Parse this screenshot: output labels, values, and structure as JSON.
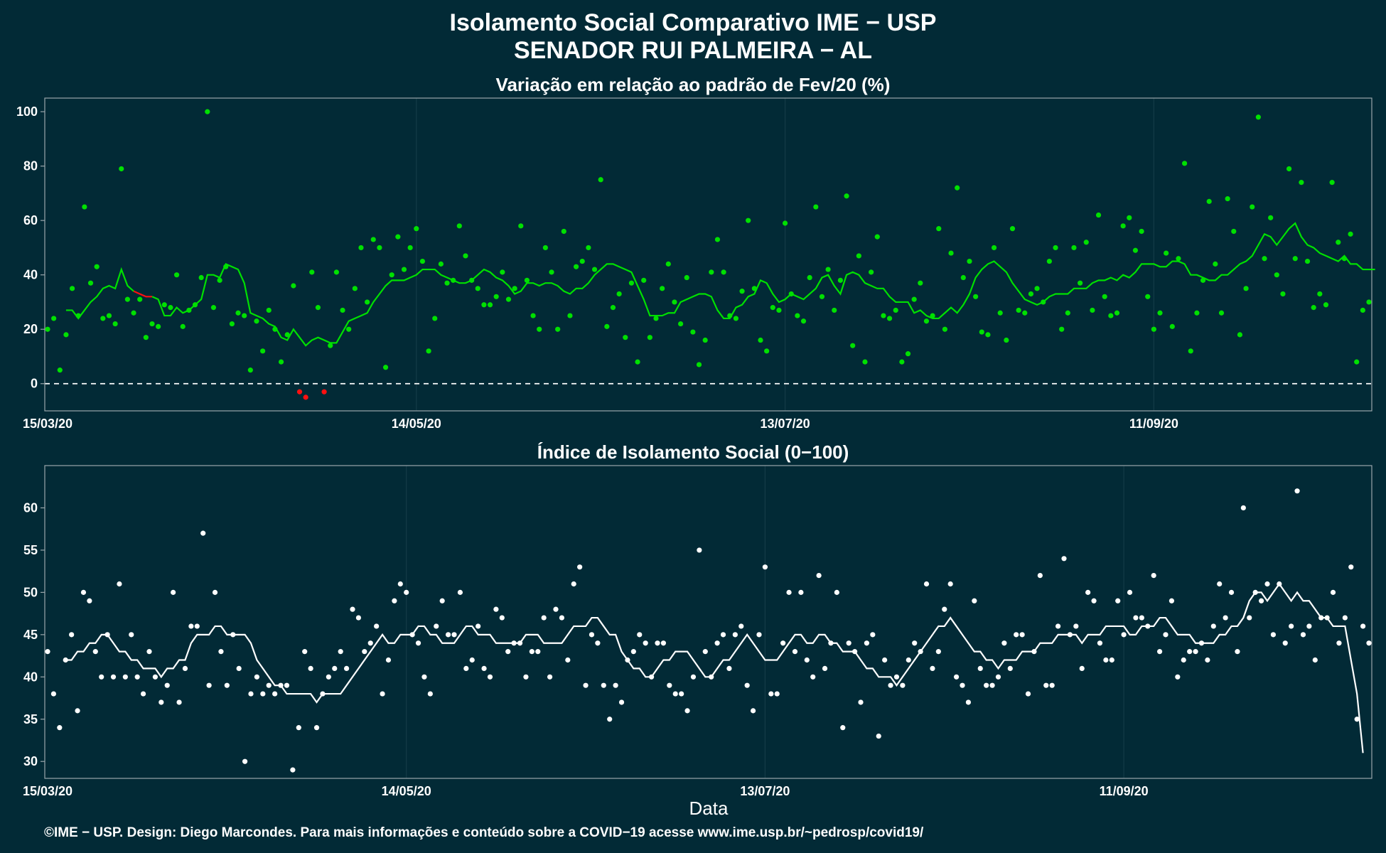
{
  "title_line1": "Isolamento Social Comparativo IME − USP",
  "title_line2": "SENADOR RUI PALMEIRA − AL",
  "xlabel": "Data",
  "footer": "©IME − USP. Design: Diego Marcondes. Para mais informações e conteúdo sobre a COVID−19 acesse www.ime.usp.br/~pedrosp/covid19/",
  "colors": {
    "background": "#022a36",
    "panel_border": "#9aa6ab",
    "grid": "#143b47",
    "positive": "#00e000",
    "negative": "#ff1010",
    "index": "#ffffff",
    "zero_line": "#ffffff"
  },
  "chart_data": [
    {
      "type": "scatter",
      "title": "Variação em relação ao padrão de Fev/20 (%)",
      "x_start": "15/03/20",
      "x_ticks": [
        "15/03/20",
        "14/05/20",
        "13/07/20",
        "11/09/20"
      ],
      "ylim": [
        -10,
        105
      ],
      "y_ticks": [
        0,
        20,
        40,
        60,
        80,
        100
      ],
      "zero_line": true,
      "grid": true,
      "points": [
        20,
        24,
        5,
        18,
        35,
        25,
        65,
        37,
        43,
        24,
        25,
        22,
        79,
        31,
        26,
        31,
        17,
        22,
        21,
        29,
        28,
        40,
        21,
        27,
        29,
        39,
        100,
        28,
        38,
        43,
        22,
        26,
        25,
        5,
        23,
        12,
        27,
        20,
        8,
        18,
        36,
        -3,
        -5,
        41,
        28,
        -3,
        14,
        41,
        27,
        20,
        35,
        50,
        30,
        53,
        50,
        6,
        40,
        54,
        42,
        50,
        57,
        45,
        12,
        24,
        44,
        37,
        38,
        58,
        47,
        38,
        35,
        29,
        29,
        32,
        41,
        31,
        35,
        58,
        38,
        25,
        20,
        50,
        41,
        20,
        56,
        25,
        43,
        45,
        50,
        42,
        75,
        21,
        28,
        33,
        17,
        37,
        8,
        38,
        17,
        24,
        35,
        44,
        30,
        22,
        39,
        19,
        7,
        16,
        41,
        53,
        41,
        25,
        24,
        34,
        60,
        35,
        16,
        12,
        28,
        27,
        59,
        33,
        25,
        23,
        39,
        65,
        32,
        42,
        27,
        38,
        69,
        14,
        47,
        8,
        41,
        54,
        25,
        24,
        27,
        8,
        11,
        31,
        37,
        23,
        25,
        57,
        20,
        48,
        72,
        39,
        45,
        32,
        19,
        18,
        50,
        26,
        16,
        57,
        27,
        26,
        33,
        35,
        30,
        45,
        50,
        20,
        26,
        50,
        37,
        52,
        27,
        62,
        32,
        25,
        26,
        58,
        61,
        49,
        56,
        32,
        20,
        26,
        48,
        21,
        46,
        81,
        12,
        26,
        38,
        67,
        44,
        26,
        68,
        56,
        18,
        35,
        65,
        98,
        46,
        61,
        40,
        33,
        79,
        46,
        74,
        45,
        28,
        33,
        29,
        74,
        52,
        46,
        55,
        8,
        27,
        30
      ],
      "moving_avg_7d": [
        27,
        27,
        24,
        27,
        30,
        32,
        35,
        36,
        35,
        42,
        36,
        34,
        33,
        32,
        32,
        31,
        25,
        25,
        28,
        26,
        27,
        29,
        31,
        40,
        40,
        39,
        44,
        43,
        42,
        37,
        26,
        25,
        24,
        22,
        21,
        17,
        16,
        20,
        17,
        14,
        16,
        17,
        16,
        15,
        15,
        19,
        23,
        24,
        25,
        26,
        30,
        33,
        36,
        38,
        38,
        38,
        39,
        40,
        42,
        42,
        42,
        40,
        39,
        38,
        37,
        37,
        38,
        40,
        42,
        41,
        39,
        38,
        36,
        33,
        34,
        37,
        37,
        36,
        37,
        37,
        36,
        34,
        33,
        35,
        35,
        37,
        40,
        42,
        44,
        44,
        43,
        42,
        41,
        36,
        31,
        25,
        25,
        25,
        26,
        26,
        30,
        31,
        32,
        33,
        33,
        32,
        27,
        24,
        24,
        28,
        29,
        32,
        33,
        38,
        37,
        33,
        30,
        31,
        33,
        32,
        31,
        33,
        35,
        39,
        40,
        36,
        33,
        40,
        41,
        40,
        37,
        36,
        35,
        35,
        32,
        30,
        30,
        30,
        26,
        27,
        25,
        24,
        24,
        26,
        28,
        26,
        29,
        33,
        39,
        42,
        44,
        45,
        43,
        41,
        37,
        34,
        31,
        30,
        29,
        30,
        32,
        33,
        33,
        33,
        35,
        35,
        35,
        37,
        38,
        38,
        39,
        38,
        40,
        39,
        41,
        44,
        44,
        44,
        43,
        43,
        45,
        45,
        44,
        40,
        40,
        39,
        38,
        38,
        40,
        40,
        42,
        44,
        45,
        47,
        51,
        55,
        54,
        51,
        54,
        57,
        59,
        54,
        51,
        50,
        48,
        47,
        46,
        45,
        47,
        44,
        44,
        42,
        42,
        42
      ],
      "avg_negative_range": [
        11,
        14
      ]
    },
    {
      "type": "scatter",
      "title": "Índice de Isolamento Social (0−100)",
      "x_start": "15/03/20",
      "x_ticks": [
        "15/03/20",
        "14/05/20",
        "13/07/20",
        "11/09/20"
      ],
      "ylim": [
        28,
        65
      ],
      "y_ticks": [
        30,
        35,
        40,
        45,
        50,
        55,
        60
      ],
      "grid": true,
      "points": [
        43,
        38,
        34,
        42,
        45,
        36,
        50,
        49,
        43,
        40,
        45,
        40,
        51,
        40,
        45,
        40,
        38,
        43,
        40,
        37,
        39,
        50,
        37,
        41,
        46,
        46,
        57,
        39,
        50,
        43,
        39,
        45,
        41,
        30,
        38,
        40,
        38,
        39,
        38,
        39,
        39,
        29,
        34,
        43,
        41,
        34,
        38,
        40,
        41,
        43,
        41,
        48,
        47,
        43,
        44,
        46,
        38,
        42,
        49,
        51,
        50,
        45,
        44,
        40,
        38,
        46,
        49,
        45,
        45,
        50,
        41,
        42,
        46,
        41,
        40,
        48,
        47,
        43,
        44,
        44,
        40,
        43,
        43,
        47,
        40,
        48,
        47,
        42,
        51,
        53,
        39,
        45,
        44,
        39,
        35,
        39,
        37,
        42,
        43,
        45,
        44,
        40,
        44,
        44,
        39,
        38,
        38,
        36,
        40,
        55,
        43,
        40,
        44,
        45,
        41,
        45,
        46,
        39,
        36,
        45,
        53,
        38,
        38,
        44,
        50,
        43,
        50,
        42,
        40,
        52,
        41,
        44,
        50,
        34,
        44,
        43,
        37,
        44,
        45,
        33,
        42,
        39,
        40,
        39,
        42,
        44,
        43,
        51,
        41,
        43,
        48,
        51,
        40,
        39,
        37,
        49,
        41,
        39,
        39,
        40,
        44,
        41,
        45,
        45,
        38,
        43,
        52,
        39,
        39,
        46,
        54,
        45,
        46,
        41,
        50,
        49,
        44,
        42,
        42,
        49,
        45,
        50,
        47,
        47,
        46,
        52,
        43,
        45,
        49,
        40,
        42,
        43,
        43,
        44,
        42,
        46,
        51,
        47,
        50,
        43,
        60,
        47,
        50,
        49,
        51,
        45,
        51,
        44,
        46,
        62,
        45,
        46,
        42,
        47,
        47,
        50,
        44,
        47,
        53,
        35,
        46,
        44
      ],
      "moving_avg_7d": [
        42,
        42,
        43,
        43,
        44,
        44,
        45,
        45,
        44,
        43,
        43,
        42,
        42,
        41,
        41,
        41,
        40,
        41,
        41,
        42,
        42,
        44,
        45,
        45,
        45,
        46,
        46,
        45,
        45,
        45,
        45,
        44,
        42,
        41,
        40,
        39,
        39,
        38,
        38,
        38,
        38,
        38,
        37,
        38,
        38,
        38,
        38,
        39,
        40,
        41,
        42,
        43,
        44,
        45,
        44,
        44,
        45,
        45,
        45,
        46,
        46,
        45,
        45,
        44,
        44,
        44,
        45,
        46,
        46,
        45,
        45,
        45,
        44,
        44,
        44,
        44,
        44,
        45,
        45,
        45,
        44,
        44,
        44,
        44,
        45,
        46,
        46,
        46,
        47,
        47,
        46,
        45,
        45,
        43,
        42,
        41,
        41,
        40,
        40,
        41,
        42,
        42,
        43,
        43,
        43,
        42,
        41,
        40,
        40,
        41,
        42,
        42,
        43,
        44,
        45,
        44,
        43,
        42,
        42,
        42,
        43,
        44,
        45,
        45,
        44,
        44,
        45,
        45,
        44,
        44,
        43,
        43,
        43,
        42,
        41,
        41,
        40,
        40,
        40,
        39,
        40,
        41,
        42,
        43,
        44,
        45,
        46,
        46,
        47,
        46,
        45,
        44,
        43,
        43,
        42,
        42,
        41,
        42,
        42,
        42,
        43,
        43,
        43,
        44,
        44,
        44,
        45,
        45,
        45,
        45,
        44,
        45,
        45,
        45,
        46,
        46,
        46,
        46,
        45,
        45,
        46,
        46,
        46,
        47,
        47,
        46,
        45,
        45,
        45,
        44,
        44,
        44,
        44,
        45,
        45,
        46,
        46,
        47,
        49,
        50,
        50,
        49,
        50,
        51,
        50,
        49,
        50,
        49,
        49,
        48,
        47,
        47,
        46,
        46,
        46,
        42,
        38,
        31
      ]
    }
  ]
}
